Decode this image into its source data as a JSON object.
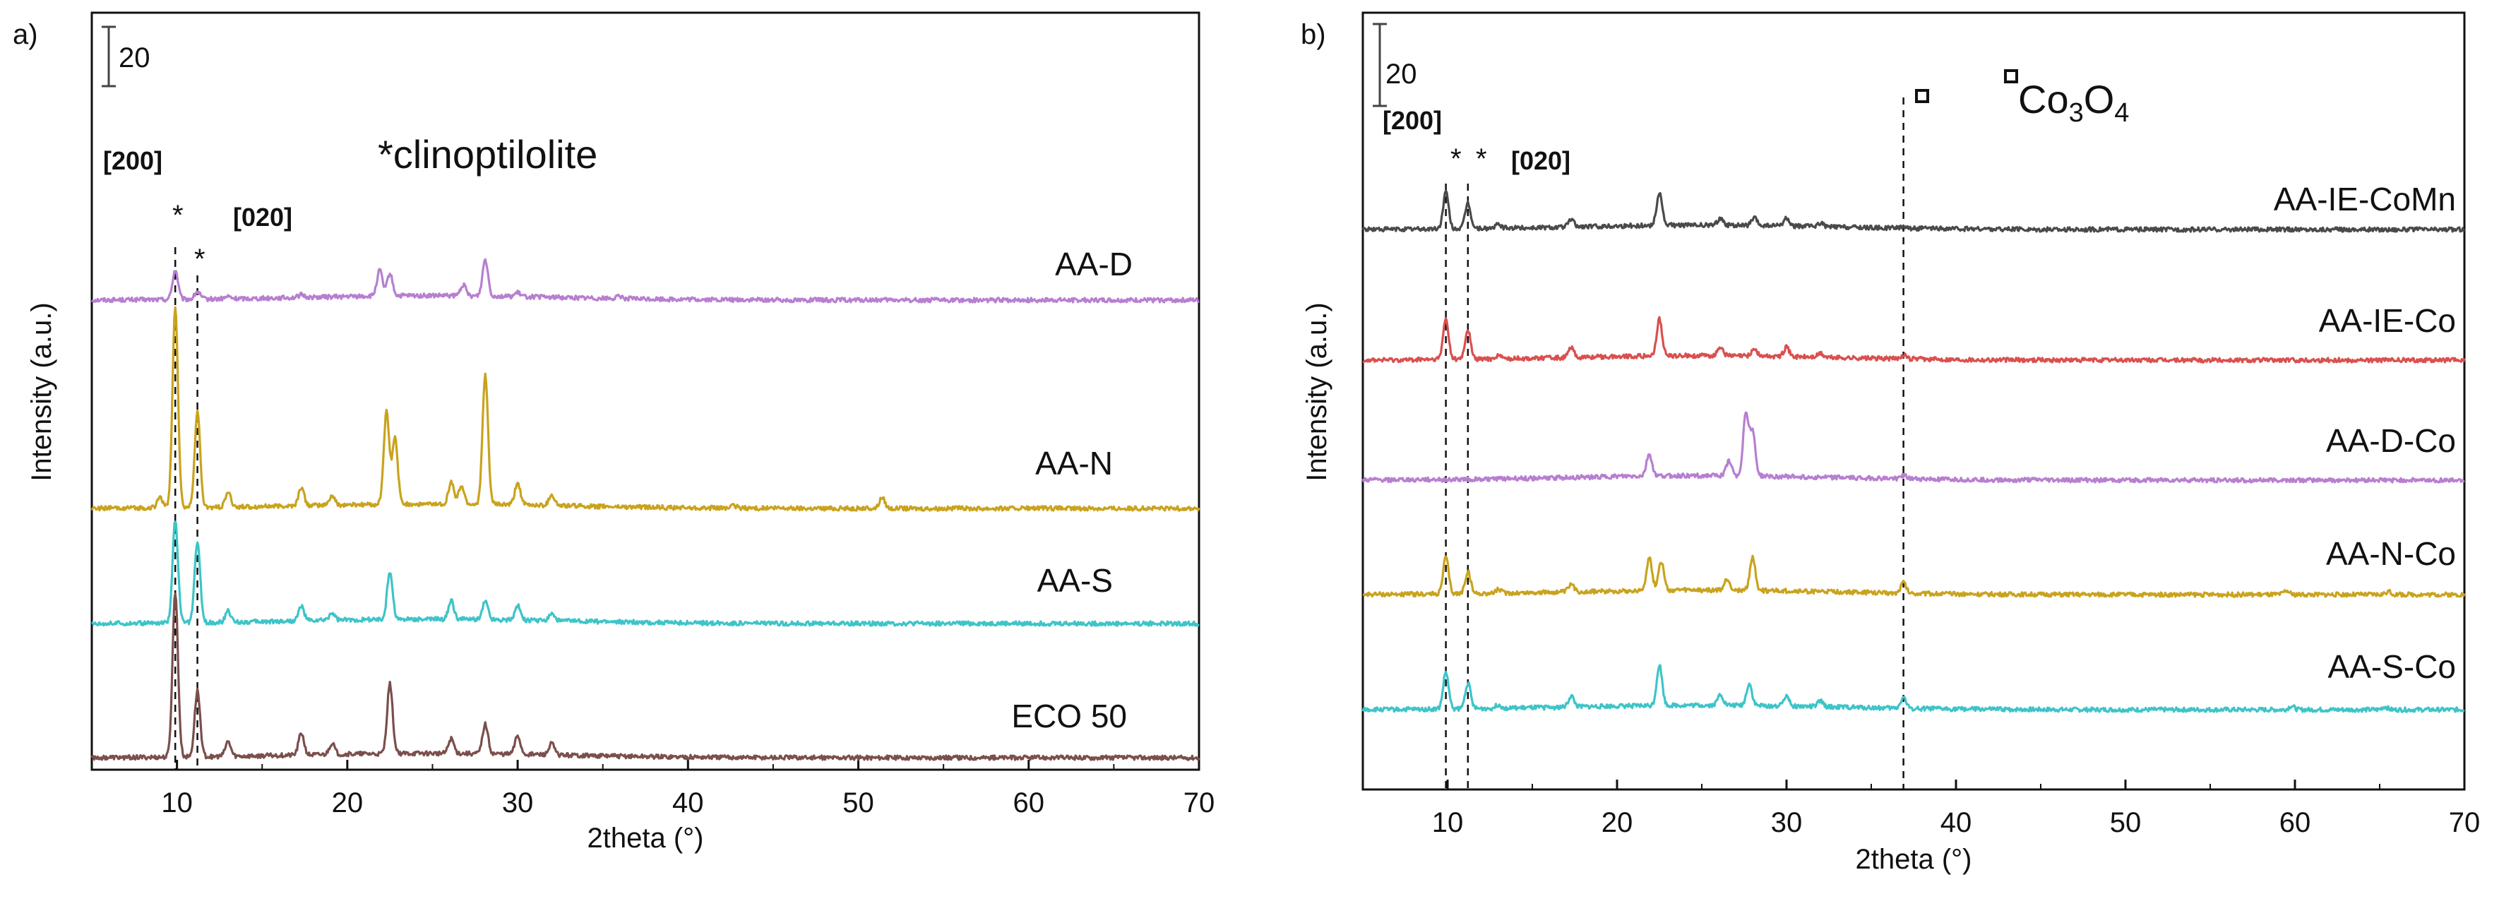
{
  "chart_data": [
    {
      "type": "line",
      "panel_label": "a)",
      "xlabel": "2theta (°)",
      "ylabel": "Intensity (a.u.)",
      "xlim": [
        5,
        70
      ],
      "xticks": [
        "10",
        "20",
        "30",
        "40",
        "50",
        "60",
        "70"
      ],
      "scale_bar": "20",
      "annotations": {
        "plane_200": "[200]",
        "plane_020": "[020]",
        "star": "*",
        "legend": "*clinoptilolite"
      },
      "reference_lines": [
        9.9,
        11.2
      ],
      "series": [
        {
          "name": "AA-D",
          "color": "#b77fd0",
          "baseline": 0.8,
          "peaks": [
            [
              9.9,
              0.08
            ],
            [
              11.2,
              0.02
            ],
            [
              13.0,
              0.006
            ],
            [
              17.3,
              0.007
            ],
            [
              21.9,
              0.07
            ],
            [
              22.5,
              0.06
            ],
            [
              26.8,
              0.03
            ],
            [
              28.1,
              0.1
            ],
            [
              30.0,
              0.01
            ],
            [
              36.0,
              0.006
            ]
          ]
        },
        {
          "name": "AA-N",
          "color": "#c9a31e",
          "baseline": 1.0,
          "peaks": [
            [
              9.0,
              0.03
            ],
            [
              9.9,
              0.55
            ],
            [
              11.2,
              0.26
            ],
            [
              13.0,
              0.04
            ],
            [
              17.3,
              0.05
            ],
            [
              19.1,
              0.025
            ],
            [
              22.3,
              0.25
            ],
            [
              22.8,
              0.18
            ],
            [
              26.1,
              0.06
            ],
            [
              26.7,
              0.05
            ],
            [
              28.1,
              0.35
            ],
            [
              30.0,
              0.06
            ],
            [
              32.0,
              0.03
            ],
            [
              42.7,
              0.006
            ],
            [
              51.4,
              0.03
            ]
          ]
        },
        {
          "name": "AA-S",
          "color": "#3ec4c8",
          "baseline": 0.6,
          "peaks": [
            [
              9.9,
              0.28
            ],
            [
              11.2,
              0.22
            ],
            [
              13.0,
              0.03
            ],
            [
              17.3,
              0.04
            ],
            [
              19.1,
              0.02
            ],
            [
              22.5,
              0.13
            ],
            [
              26.1,
              0.05
            ],
            [
              28.1,
              0.05
            ],
            [
              30.0,
              0.04
            ],
            [
              32.0,
              0.02
            ]
          ]
        },
        {
          "name": "ECO 50",
          "color": "#7a4f4c",
          "baseline": 0.5,
          "peaks": [
            [
              9.9,
              0.45
            ],
            [
              11.2,
              0.18
            ],
            [
              13.0,
              0.04
            ],
            [
              17.3,
              0.06
            ],
            [
              19.1,
              0.03
            ],
            [
              22.5,
              0.19
            ],
            [
              26.1,
              0.04
            ],
            [
              28.1,
              0.08
            ],
            [
              30.0,
              0.05
            ],
            [
              32.0,
              0.03
            ]
          ]
        }
      ]
    },
    {
      "type": "line",
      "panel_label": "b)",
      "xlabel": "2theta (°)",
      "ylabel": "Intensity (a.u.)",
      "xlim": [
        5,
        70
      ],
      "xticks": [
        "10",
        "20",
        "30",
        "40",
        "50",
        "60",
        "70"
      ],
      "scale_bar": "20",
      "annotations": {
        "plane_200": "[200]",
        "plane_020": "[020]",
        "star": "*",
        "legend_prefix": "Co",
        "legend_sub1": "3",
        "legend_mid": "O",
        "legend_sub2": "4"
      },
      "reference_lines": [
        9.9,
        11.2,
        36.9
      ],
      "square_marker_at": 38.0,
      "series": [
        {
          "name": "AA-IE-CoMn",
          "color": "#4a4a4a",
          "baseline": 0.9,
          "peaks": [
            [
              9.9,
              0.1
            ],
            [
              11.2,
              0.07
            ],
            [
              13.0,
              0.01
            ],
            [
              17.3,
              0.02
            ],
            [
              22.5,
              0.09
            ],
            [
              26.1,
              0.02
            ],
            [
              28.1,
              0.02
            ],
            [
              30.0,
              0.02
            ],
            [
              32.0,
              0.01
            ],
            [
              36.9,
              0.006
            ]
          ]
        },
        {
          "name": "AA-IE-Co",
          "color": "#d9504f",
          "baseline": 0.8,
          "peaks": [
            [
              9.9,
              0.11
            ],
            [
              11.2,
              0.08
            ],
            [
              13.0,
              0.01
            ],
            [
              17.3,
              0.025
            ],
            [
              22.5,
              0.1
            ],
            [
              26.1,
              0.025
            ],
            [
              28.1,
              0.02
            ],
            [
              30.0,
              0.025
            ],
            [
              32.0,
              0.01
            ],
            [
              36.9,
              0.01
            ]
          ]
        },
        {
          "name": "AA-D-Co",
          "color": "#b77fd0",
          "baseline": 0.72,
          "peaks": [
            [
              21.9,
              0.06
            ],
            [
              26.6,
              0.04
            ],
            [
              27.6,
              0.17
            ],
            [
              28.0,
              0.12
            ],
            [
              36.9,
              0.01
            ]
          ]
        },
        {
          "name": "AA-N-Co",
          "color": "#c9a31e",
          "baseline": 0.82,
          "peaks": [
            [
              9.9,
              0.1
            ],
            [
              11.2,
              0.06
            ],
            [
              13.0,
              0.01
            ],
            [
              17.3,
              0.02
            ],
            [
              21.9,
              0.09
            ],
            [
              22.6,
              0.08
            ],
            [
              26.5,
              0.03
            ],
            [
              28.0,
              0.09
            ],
            [
              36.9,
              0.03
            ],
            [
              59.5,
              0.01
            ],
            [
              65.5,
              0.008
            ]
          ]
        },
        {
          "name": "AA-S-Co",
          "color": "#3ec4c8",
          "baseline": 0.7,
          "peaks": [
            [
              9.9,
              0.1
            ],
            [
              11.2,
              0.07
            ],
            [
              13.0,
              0.01
            ],
            [
              17.3,
              0.03
            ],
            [
              22.5,
              0.11
            ],
            [
              26.1,
              0.03
            ],
            [
              27.8,
              0.06
            ],
            [
              30.0,
              0.03
            ],
            [
              32.0,
              0.015
            ],
            [
              36.9,
              0.03
            ],
            [
              59.8,
              0.01
            ],
            [
              65.3,
              0.008
            ]
          ]
        }
      ]
    }
  ]
}
